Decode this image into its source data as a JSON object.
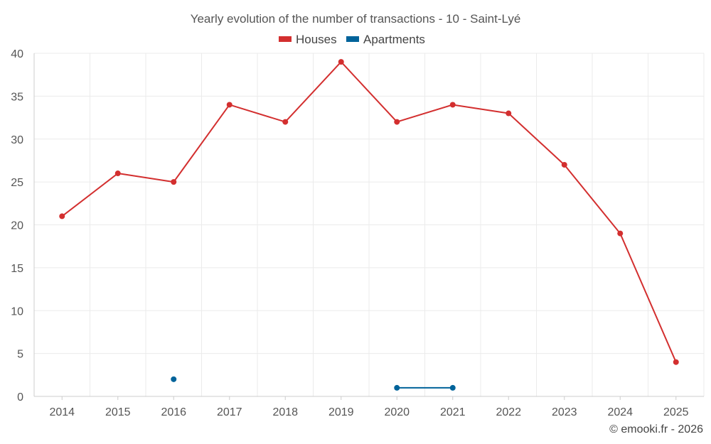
{
  "chart_data": {
    "type": "line",
    "title": "Yearly evolution of the number of transactions - 10 - Saint-Lyé",
    "categories": [
      "2014",
      "2015",
      "2016",
      "2017",
      "2018",
      "2019",
      "2020",
      "2021",
      "2022",
      "2023",
      "2024",
      "2025"
    ],
    "series": [
      {
        "name": "Houses",
        "color": "#d32f2f",
        "values": [
          21,
          26,
          25,
          34,
          32,
          39,
          32,
          34,
          33,
          27,
          19,
          4
        ]
      },
      {
        "name": "Apartments",
        "color": "#00639a",
        "values": [
          null,
          null,
          2,
          null,
          null,
          null,
          1,
          1,
          null,
          null,
          null,
          null
        ]
      }
    ],
    "xlabel": "",
    "ylabel": "",
    "ylim": [
      0,
      40
    ],
    "yticks": [
      0,
      5,
      10,
      15,
      20,
      25,
      30,
      35,
      40
    ],
    "grid": true,
    "legend": "top-center"
  },
  "footer": {
    "credit": "© emooki.fr - 2026"
  }
}
